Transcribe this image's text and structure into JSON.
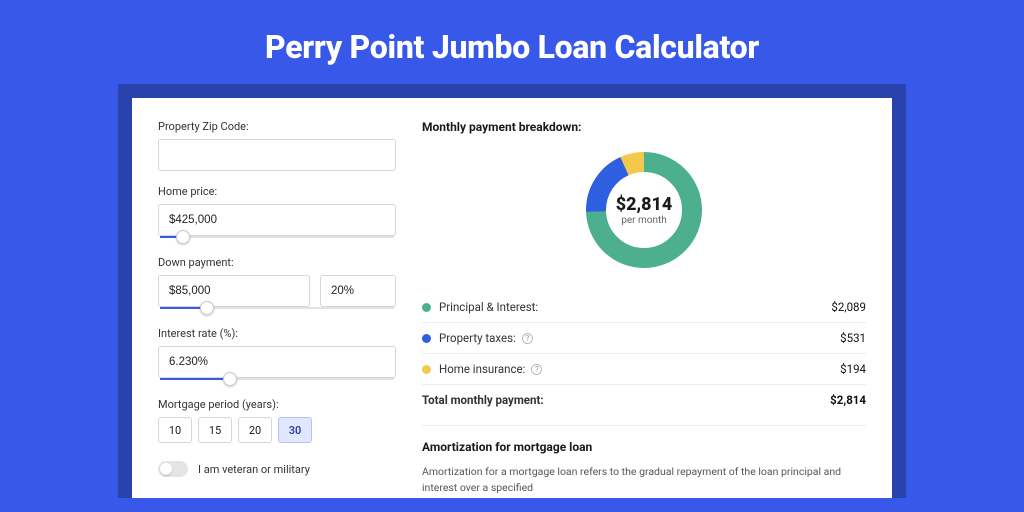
{
  "hero": {
    "title": "Perry Point Jumbo Loan Calculator"
  },
  "colors": {
    "page_bg": "#3858e9",
    "stage_bg": "#2a43ac",
    "card_bg": "#ffffff",
    "slider_fill": "#3858e9"
  },
  "form": {
    "zip": {
      "label": "Property Zip Code:",
      "value": ""
    },
    "price": {
      "label": "Home price:",
      "value": "$425,000",
      "slider_pct": 10
    },
    "down": {
      "label": "Down payment:",
      "value": "$85,000",
      "pct": "20%",
      "slider_pct": 20
    },
    "rate": {
      "label": "Interest rate (%):",
      "value": "6.230%",
      "slider_pct": 30
    },
    "period": {
      "label": "Mortgage period (years):",
      "options": [
        "10",
        "15",
        "20",
        "30"
      ],
      "selected": "30"
    },
    "veteran": {
      "label": "I am veteran or military",
      "on": false
    }
  },
  "breakdown": {
    "title": "Monthly payment breakdown:",
    "donut": {
      "amount": "$2,814",
      "sub": "per month",
      "segments": [
        {
          "key": "pi",
          "color": "#4caf8e",
          "fraction": 0.743
        },
        {
          "key": "tax",
          "color": "#2d5fe0",
          "fraction": 0.189
        },
        {
          "key": "ins",
          "color": "#f3c94b",
          "fraction": 0.068
        }
      ]
    },
    "rows": [
      {
        "color": "#4caf8e",
        "label": "Principal & Interest:",
        "info": false,
        "value": "$2,089"
      },
      {
        "color": "#2d5fe0",
        "label": "Property taxes:",
        "info": true,
        "value": "$531"
      },
      {
        "color": "#f3c94b",
        "label": "Home insurance:",
        "info": true,
        "value": "$194"
      }
    ],
    "total": {
      "label": "Total monthly payment:",
      "value": "$2,814"
    }
  },
  "amort": {
    "title": "Amortization for mortgage loan",
    "body": "Amortization for a mortgage loan refers to the gradual repayment of the loan principal and interest over a specified"
  }
}
